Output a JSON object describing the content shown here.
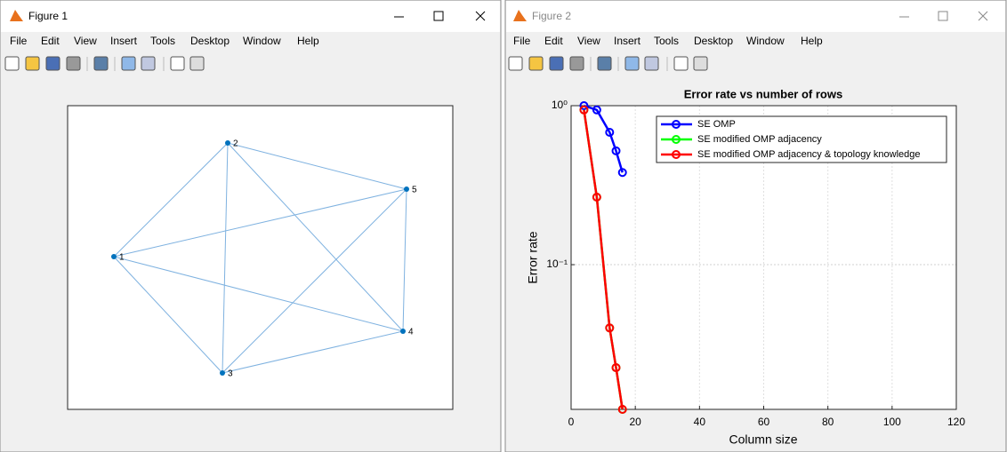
{
  "windows": [
    {
      "title": "Figure 1",
      "menu": [
        "File",
        "Edit",
        "View",
        "Insert",
        "Tools",
        "Desktop",
        "Window",
        "Help"
      ],
      "graph": {
        "nodes": [
          "1",
          "2",
          "3",
          "4",
          "5"
        ],
        "edges": [
          [
            0,
            1
          ],
          [
            0,
            2
          ],
          [
            0,
            3
          ],
          [
            0,
            4
          ],
          [
            1,
            2
          ],
          [
            1,
            3
          ],
          [
            1,
            4
          ],
          [
            2,
            3
          ],
          [
            2,
            4
          ],
          [
            3,
            4
          ]
        ]
      }
    },
    {
      "title": "Figure 2",
      "menu": [
        "File",
        "Edit",
        "View",
        "Insert",
        "Tools",
        "Desktop",
        "Window",
        "Help"
      ]
    }
  ],
  "chart_data": {
    "type": "line",
    "title": "Error rate vs number of rows",
    "xlabel": "Column size",
    "ylabel": "Error rate",
    "x": [
      4,
      8,
      12,
      14,
      16
    ],
    "series": [
      {
        "name": "SE OMP",
        "color": "#0000ff",
        "values": [
          1.0,
          0.94,
          0.68,
          0.52,
          0.38
        ]
      },
      {
        "name": "SE modified OMP adjacency",
        "color": "#00ff00",
        "values": [
          0.94,
          0.266,
          0.04,
          0.0225,
          0.0123
        ]
      },
      {
        "name": "SE modified OMP adjacency & topology knowledge",
        "color": "#ff0000",
        "values": [
          0.94,
          0.266,
          0.04,
          0.0225,
          0.0123
        ]
      }
    ],
    "xlim": [
      0,
      120
    ],
    "xticks": [
      0,
      20,
      40,
      60,
      80,
      100,
      120
    ],
    "ylim": [
      0.0123,
      1
    ],
    "yticks": [
      {
        "value": 1,
        "label": "10⁰"
      },
      {
        "value": 0.1,
        "label": "10⁻¹"
      }
    ],
    "log_y": true,
    "grid": true,
    "legend": "top-right"
  }
}
